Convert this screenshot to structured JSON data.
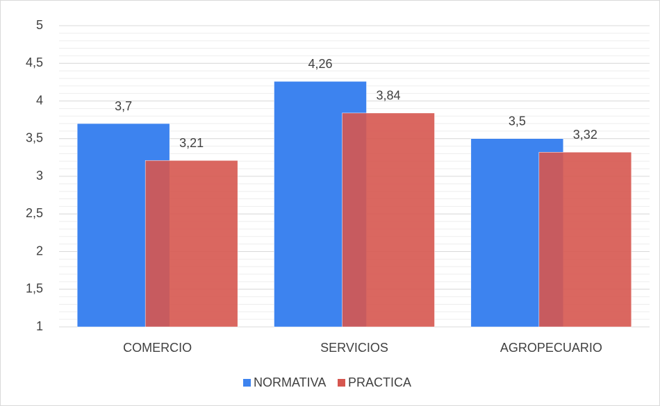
{
  "chart_data": {
    "type": "bar",
    "categories": [
      "COMERCIO",
      "SERVICIOS",
      "AGROPECUARIO"
    ],
    "series": [
      {
        "name": "NORMATIVA",
        "color": "#3d83ef",
        "values": [
          3.7,
          4.26,
          3.5
        ],
        "value_labels": [
          "3,7",
          "4,26",
          "3,5"
        ]
      },
      {
        "name": "PRACTICA",
        "color": "#d6564f",
        "values": [
          3.21,
          3.84,
          3.32
        ],
        "value_labels": [
          "3,21",
          "3,84",
          "3,32"
        ]
      }
    ],
    "ylim": [
      1,
      5
    ],
    "yticks": [
      1,
      {
        "value": 1.5,
        "label": "1,5"
      },
      2,
      {
        "value": 2.5,
        "label": "2,5"
      },
      3,
      {
        "value": 3.5,
        "label": "3,5"
      },
      4,
      {
        "value": 4.5,
        "label": "4,5"
      },
      5
    ],
    "grid": true,
    "minor_grid": true,
    "legend": "bottom"
  }
}
